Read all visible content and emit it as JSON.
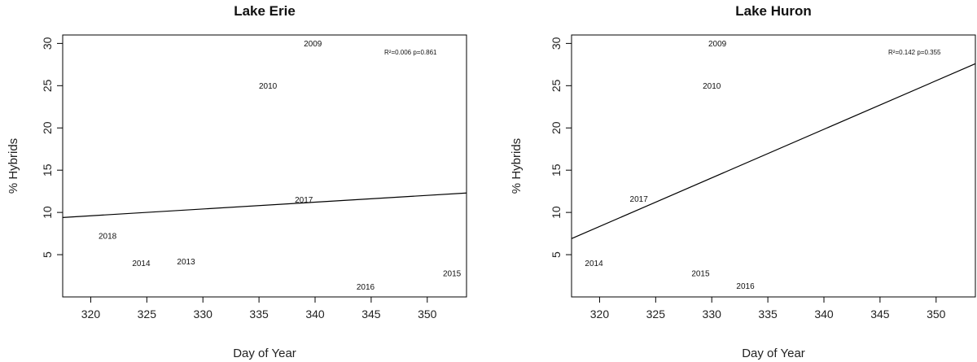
{
  "chart_data": [
    {
      "type": "scatter",
      "title": "Lake Erie",
      "xlabel": "Day of Year",
      "ylabel": "% Hybrids",
      "xlim": [
        317.5,
        353.5
      ],
      "ylim": [
        0,
        31
      ],
      "xticks": [
        "320",
        "325",
        "330",
        "335",
        "340",
        "345",
        "350"
      ],
      "yticks": [
        "5",
        "10",
        "15",
        "20",
        "25",
        "30"
      ],
      "annotation": "R²=0.006 p=0.861",
      "points": [
        {
          "label": "2009",
          "x": 339.8,
          "y": 30
        },
        {
          "label": "2010",
          "x": 335.8,
          "y": 25
        },
        {
          "label": "2017",
          "x": 339,
          "y": 11.5
        },
        {
          "label": "2018",
          "x": 321.5,
          "y": 7.2
        },
        {
          "label": "2014",
          "x": 324.5,
          "y": 4
        },
        {
          "label": "2013",
          "x": 328.5,
          "y": 4.2
        },
        {
          "label": "2016",
          "x": 344.5,
          "y": 1.2
        },
        {
          "label": "2015",
          "x": 352.2,
          "y": 2.8
        }
      ],
      "fit_line": {
        "x": [
          317.5,
          353.5
        ],
        "y": [
          9.4,
          12.3
        ]
      }
    },
    {
      "type": "scatter",
      "title": "Lake Huron",
      "xlabel": "Day of Year",
      "ylabel": "% Hybrids",
      "xlim": [
        317.5,
        353.5
      ],
      "ylim": [
        0,
        31
      ],
      "xticks": [
        "320",
        "325",
        "330",
        "335",
        "340",
        "345",
        "350"
      ],
      "yticks": [
        "5",
        "10",
        "15",
        "20",
        "25",
        "30"
      ],
      "annotation": "R²=0.142 p=0.355",
      "points": [
        {
          "label": "2009",
          "x": 330.5,
          "y": 30
        },
        {
          "label": "2010",
          "x": 330,
          "y": 25
        },
        {
          "label": "2017",
          "x": 323.5,
          "y": 11.6
        },
        {
          "label": "2014",
          "x": 319.5,
          "y": 4
        },
        {
          "label": "2015",
          "x": 329,
          "y": 2.8
        },
        {
          "label": "2016",
          "x": 333,
          "y": 1.3
        }
      ],
      "fit_line": {
        "x": [
          317.5,
          353.5
        ],
        "y": [
          6.9,
          27.6
        ]
      }
    }
  ]
}
